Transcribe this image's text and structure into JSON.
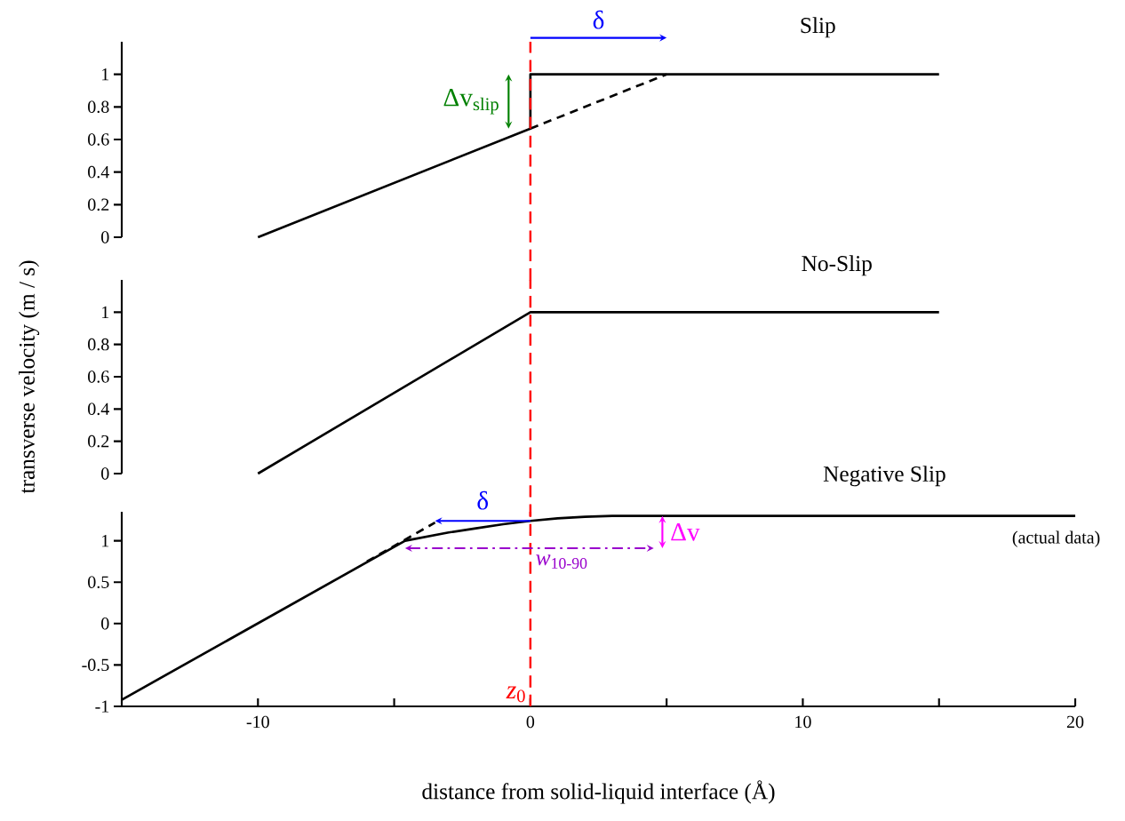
{
  "chart_data": [
    {
      "type": "line",
      "title": "Slip",
      "xlim": [
        -15,
        20
      ],
      "ylim": [
        0,
        1.2
      ],
      "yticks": [
        0,
        0.2,
        0.4,
        0.6,
        0.8,
        1
      ],
      "tick_labels": "y",
      "marker": "none",
      "series": [
        {
          "color": "#000000",
          "x": [
            -10,
            0,
            0,
            15
          ],
          "values": [
            0,
            0.667,
            1,
            1
          ]
        },
        {
          "color": "#000000",
          "x": [
            0,
            5
          ],
          "values": [
            0.667,
            1
          ],
          "line_style": "dashed"
        }
      ],
      "ref_lines": [
        {
          "axis": "x",
          "value": 0,
          "color": "#ff0000",
          "line_style": "dashed"
        }
      ],
      "annotations": [
        "Δv$_{slip}$",
        "δ"
      ]
    },
    {
      "type": "line",
      "title": "No-Slip",
      "ylabel": "transverse velocity (m / s)",
      "xlim": [
        -15,
        20
      ],
      "ylim": [
        0,
        1.2
      ],
      "yticks": [
        0,
        0.2,
        0.4,
        0.6,
        0.8,
        1
      ],
      "tick_labels": "y",
      "marker": "none",
      "series": [
        {
          "color": "#000000",
          "x": [
            -10,
            0,
            15
          ],
          "values": [
            0,
            1,
            1
          ]
        }
      ],
      "ref_lines": [
        {
          "axis": "x",
          "value": 0,
          "color": "#ff0000",
          "line_style": "dashed"
        }
      ]
    },
    {
      "type": "line",
      "title": "Negative Slip",
      "xlabel": "distance from solid-liquid interface (Å)",
      "xlim": [
        -15,
        20
      ],
      "ylim": [
        -1,
        1.35
      ],
      "yticks": [
        -1,
        -0.5,
        0,
        0.5,
        1
      ],
      "xticks": [
        -10,
        {
          "value": -5,
          "label": null
        },
        0,
        {
          "value": 5,
          "label": null
        },
        10,
        {
          "value": 15,
          "label": null
        },
        20
      ],
      "marker": "none",
      "series": [
        {
          "color": "#000000",
          "x": [
            -15,
            -4.6,
            -3,
            -2,
            -1,
            0,
            1,
            2,
            3,
            20
          ],
          "values": [
            -0.92,
            1.0,
            1.1,
            1.15,
            1.2,
            1.24,
            1.27,
            1.29,
            1.3,
            1.3
          ]
        },
        {
          "color": "#000000",
          "x": [
            -6,
            -3.5
          ],
          "values": [
            0.75,
            1.22
          ],
          "line_style": "dashed"
        }
      ],
      "ref_lines": [
        {
          "axis": "x",
          "value": 0,
          "color": "#ff0000",
          "line_style": "dashed",
          "label": "*z*$_{0}$"
        }
      ],
      "annotations": [
        "δ",
        "Δv",
        "*w*$_{10-90}$",
        "(actual data)"
      ]
    }
  ]
}
